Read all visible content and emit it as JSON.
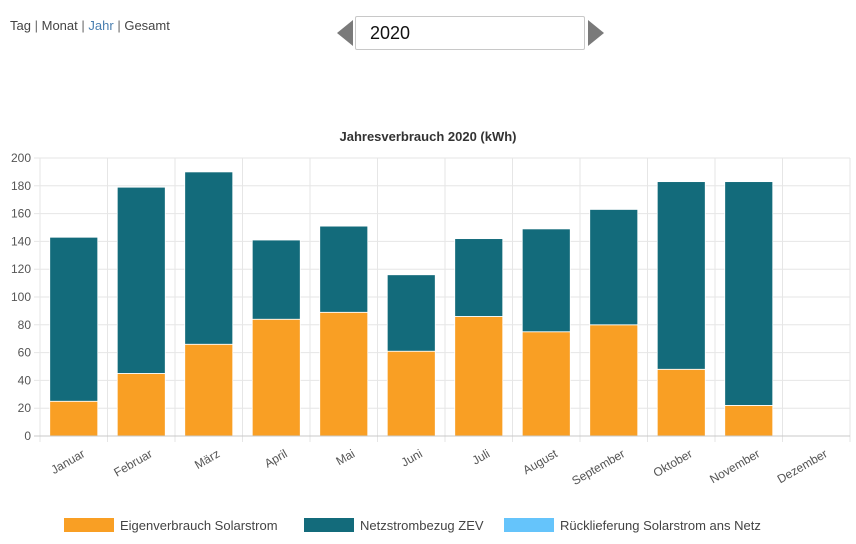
{
  "nav": {
    "items": [
      {
        "label": "Tag",
        "active": false
      },
      {
        "label": "Monat",
        "active": false
      },
      {
        "label": "Jahr",
        "active": true
      },
      {
        "label": "Gesamt",
        "active": false
      }
    ],
    "separator": "|"
  },
  "year_selector": {
    "value": "2020",
    "prev_icon": "triangle-left-icon",
    "next_icon": "triangle-right-icon"
  },
  "colors": {
    "eigenverbrauch": "#f99f24",
    "netzstrom": "#136b7b",
    "ruecklieferung": "#65c4fb",
    "grid": "#e6e6e6",
    "axis": "#c8c8c8"
  },
  "chart_data": {
    "type": "bar",
    "stacked": true,
    "title": "Jahresverbrauch 2020 (kWh)",
    "categories": [
      "Januar",
      "Februar",
      "März",
      "April",
      "Mai",
      "Juni",
      "Juli",
      "August",
      "September",
      "Oktober",
      "November",
      "Dezember"
    ],
    "series": [
      {
        "name": "Eigenverbrauch Solarstrom",
        "color": "#f99f24",
        "values": [
          25,
          45,
          66,
          84,
          89,
          61,
          86,
          75,
          80,
          48,
          22,
          0
        ]
      },
      {
        "name": "Netzstrombezug ZEV",
        "color": "#136b7b",
        "values": [
          118,
          134,
          124,
          57,
          62,
          55,
          56,
          74,
          83,
          135,
          161,
          0
        ]
      },
      {
        "name": "Rücklieferung Solarstrom ans Netz",
        "color": "#65c4fb",
        "values": [
          0,
          0,
          0,
          0,
          0,
          0,
          0,
          0,
          0,
          0,
          0,
          0
        ]
      }
    ],
    "ylim": [
      0,
      200
    ],
    "yticks": [
      0,
      20,
      40,
      60,
      80,
      100,
      120,
      140,
      160,
      180,
      200
    ],
    "grid": true,
    "legend_position": "bottom"
  }
}
